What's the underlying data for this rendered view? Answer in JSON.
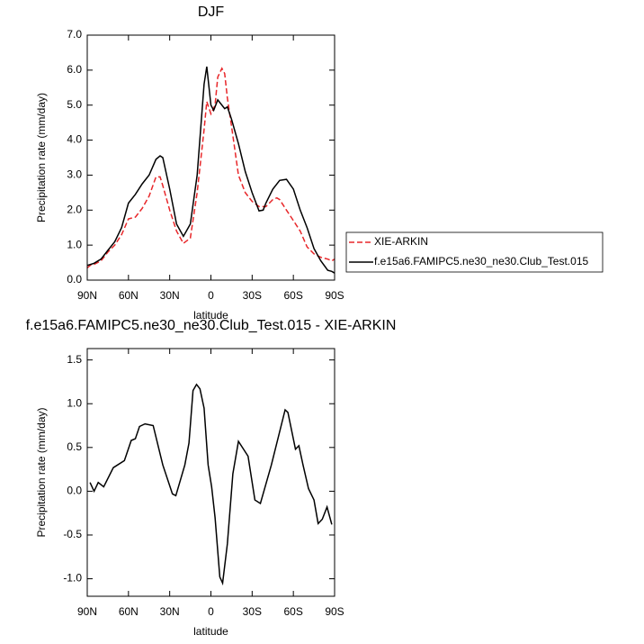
{
  "chart_data": [
    {
      "type": "line",
      "title": "DJF",
      "xlabel": "latitude",
      "ylabel": "Precipitation rate (mm/day)",
      "xlim": [
        90,
        -90
      ],
      "ylim": [
        0,
        7
      ],
      "xticks": [
        {
          "value": 90,
          "label": "90N"
        },
        {
          "value": 60,
          "label": "60N"
        },
        {
          "value": 30,
          "label": "30N"
        },
        0,
        {
          "value": -30,
          "label": "30S"
        },
        {
          "value": -60,
          "label": "60S"
        },
        {
          "value": -90,
          "label": "90S"
        }
      ],
      "yticks": [
        {
          "value": 0,
          "label": "0.0"
        },
        {
          "value": 1,
          "label": "1.0"
        },
        {
          "value": 2,
          "label": "2.0"
        },
        {
          "value": 3,
          "label": "3.0"
        },
        {
          "value": 4,
          "label": "4.0"
        },
        {
          "value": 5,
          "label": "5.0"
        },
        {
          "value": 6,
          "label": "6.0"
        },
        {
          "value": 7,
          "label": "7.0"
        }
      ],
      "legend": "right",
      "series": [
        {
          "name": "XIE-ARKIN",
          "color": "#e8272a",
          "dash": true,
          "x": [
            90,
            87,
            85,
            80,
            75,
            70,
            65,
            60,
            55,
            50,
            45,
            40,
            37,
            35,
            30,
            25,
            20,
            15,
            10,
            5,
            3,
            0,
            -3,
            -5,
            -8,
            -10,
            -12,
            -15,
            -20,
            -25,
            -30,
            -35,
            -40,
            -45,
            -48,
            -50,
            -55,
            -60,
            -65,
            -70,
            -75,
            -80,
            -85,
            -88,
            -90
          ],
          "values": [
            0.35,
            0.45,
            0.45,
            0.55,
            0.8,
            1.0,
            1.3,
            1.75,
            1.8,
            2.05,
            2.4,
            2.95,
            2.95,
            2.7,
            2.0,
            1.4,
            1.05,
            1.2,
            2.5,
            4.3,
            5.1,
            4.75,
            5.0,
            5.8,
            6.05,
            5.9,
            5.2,
            4.4,
            3.0,
            2.5,
            2.25,
            2.1,
            2.1,
            2.3,
            2.35,
            2.3,
            2.0,
            1.7,
            1.4,
            0.95,
            0.75,
            0.65,
            0.6,
            0.55,
            0.6
          ]
        },
        {
          "name": "f.e15a6.FAMIPC5.ne30_ne30.Club_Test.015",
          "color": "#000000",
          "dash": false,
          "x": [
            90,
            85,
            80,
            75,
            70,
            65,
            60,
            55,
            50,
            45,
            40,
            37,
            35,
            30,
            25,
            20,
            15,
            10,
            5,
            3,
            0,
            -2,
            -5,
            -10,
            -12,
            -15,
            -20,
            -25,
            -30,
            -35,
            -38,
            -40,
            -45,
            -50,
            -55,
            -60,
            -65,
            -70,
            -75,
            -80,
            -85,
            -88,
            -90
          ],
          "values": [
            0.42,
            0.48,
            0.6,
            0.85,
            1.1,
            1.5,
            2.2,
            2.45,
            2.75,
            3.0,
            3.45,
            3.55,
            3.5,
            2.6,
            1.6,
            1.25,
            1.6,
            3.0,
            5.6,
            6.1,
            5.0,
            4.85,
            5.15,
            4.9,
            4.95,
            4.6,
            3.9,
            3.1,
            2.5,
            1.98,
            2.0,
            2.2,
            2.6,
            2.85,
            2.88,
            2.6,
            2.0,
            1.5,
            0.9,
            0.55,
            0.28,
            0.25,
            0.2
          ]
        }
      ]
    },
    {
      "type": "line",
      "title": "f.e15a6.FAMIPC5.ne30_ne30.Club_Test.015 - XIE-ARKIN",
      "xlabel": "latitude",
      "ylabel": "Precipitation rate (mm/day)",
      "xlim": [
        90,
        -90
      ],
      "ylim": [
        -1.2,
        1.63
      ],
      "xticks": [
        {
          "value": 90,
          "label": "90N"
        },
        {
          "value": 60,
          "label": "60N"
        },
        {
          "value": 30,
          "label": "30N"
        },
        0,
        {
          "value": -30,
          "label": "30S"
        },
        {
          "value": -60,
          "label": "60S"
        },
        {
          "value": -90,
          "label": "90S"
        }
      ],
      "yticks": [
        {
          "value": -1,
          "label": "-1.0"
        },
        {
          "value": -0.5,
          "label": "-0.5"
        },
        {
          "value": 0,
          "label": "0.0"
        },
        0.5,
        {
          "value": 1,
          "label": "1.0"
        },
        1.5
      ],
      "series": [
        {
          "color": "#000000",
          "dash": false,
          "x": [
            88,
            85,
            82,
            78,
            71,
            63,
            58,
            55,
            52,
            48,
            42,
            35,
            28,
            25.5,
            19,
            16,
            13,
            10.5,
            8,
            5,
            2,
            -0.5,
            -3,
            -6.5,
            -8.5,
            -12,
            -16,
            -20,
            -27,
            -32,
            -36,
            -44,
            -54,
            -56,
            -61.5,
            -64,
            -67,
            -71,
            -75,
            -78,
            -81,
            -84.5,
            -88
          ],
          "values": [
            0.1,
            0.0,
            0.1,
            0.05,
            0.27,
            0.35,
            0.58,
            0.6,
            0.74,
            0.77,
            0.75,
            0.3,
            -0.03,
            -0.05,
            0.3,
            0.55,
            1.15,
            1.22,
            1.17,
            0.95,
            0.3,
            0.05,
            -0.3,
            -0.98,
            -1.05,
            -0.6,
            0.2,
            0.57,
            0.4,
            -0.1,
            -0.14,
            0.3,
            0.93,
            0.9,
            0.48,
            0.52,
            0.3,
            0.03,
            -0.1,
            -0.37,
            -0.32,
            -0.18,
            -0.38
          ]
        }
      ]
    }
  ]
}
